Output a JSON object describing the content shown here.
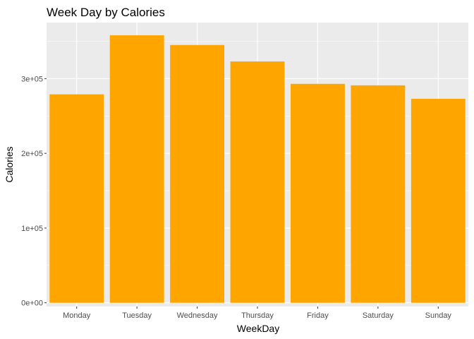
{
  "chart_data": {
    "type": "bar",
    "title": "Week Day by Calories",
    "xlabel": "WeekDay",
    "ylabel": "Calories",
    "categories": [
      "Monday",
      "Tuesday",
      "Wednesday",
      "Thursday",
      "Friday",
      "Saturday",
      "Sunday"
    ],
    "values": [
      279000,
      358000,
      345000,
      323000,
      293000,
      291000,
      273000
    ],
    "ylim": [
      -5000,
      375000
    ],
    "yticks": [
      0,
      100000,
      200000,
      300000
    ],
    "ytick_labels": [
      "0e+00",
      "1e+05",
      "2e+05",
      "3e+05"
    ],
    "bar_color": "#FFA500",
    "panel_background": "#EBEBEB",
    "grid_color": "#FFFFFF",
    "grid": true,
    "legend": "none"
  }
}
